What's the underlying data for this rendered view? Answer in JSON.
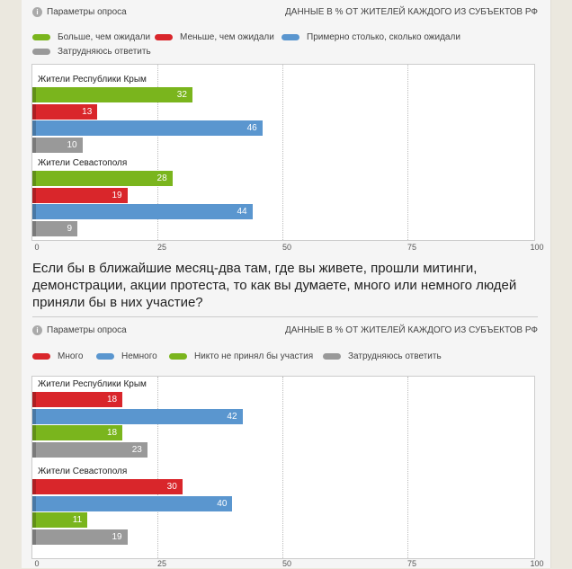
{
  "colors": {
    "green": "#7ab51d",
    "red": "#d9262b",
    "blue": "#5a96cf",
    "gray": "#999999"
  },
  "header": {
    "params_label": "Параметры опроса",
    "scope_label": "ДАННЫЕ В % ОТ ЖИТЕЛЕЙ КАЖДОГО ИЗ СУБЪЕКТОВ РФ",
    "info_icon": "i"
  },
  "question2": "Если бы в ближайшие месяц-два там, где вы живете, прошли митинги, демонстрации, акции протеста, то как вы думаете, много или немного людей приняли бы в них участие?",
  "chart_data": [
    {
      "type": "bar",
      "orientation": "horizontal",
      "xlim": [
        0,
        100
      ],
      "ticks": [
        "0",
        "25",
        "50",
        "75",
        "100"
      ],
      "legend": [
        {
          "name": "Больше, чем ожидали",
          "color": "#7ab51d"
        },
        {
          "name": "Меньше, чем ожидали",
          "color": "#d9262b"
        },
        {
          "name": "Примерно столько, сколько ожидали",
          "color": "#5a96cf"
        },
        {
          "name": "Затрудняюсь ответить",
          "color": "#999999"
        }
      ],
      "groups": [
        {
          "name": "Жители Республики Крым",
          "values": [
            32,
            13,
            46,
            10
          ]
        },
        {
          "name": "Жители Севастополя",
          "values": [
            28,
            19,
            44,
            9
          ]
        }
      ]
    },
    {
      "type": "bar",
      "orientation": "horizontal",
      "xlim": [
        0,
        100
      ],
      "ticks": [
        "0",
        "25",
        "50",
        "75",
        "100"
      ],
      "legend": [
        {
          "name": "Много",
          "color": "#d9262b"
        },
        {
          "name": "Немного",
          "color": "#5a96cf"
        },
        {
          "name": "Никто не принял бы участия",
          "color": "#7ab51d"
        },
        {
          "name": "Затрудняюсь ответить",
          "color": "#999999"
        }
      ],
      "groups": [
        {
          "name": "Жители Республики Крым",
          "values": [
            18,
            42,
            18,
            23
          ]
        },
        {
          "name": "Жители Севастополя",
          "values": [
            30,
            40,
            11,
            19
          ]
        }
      ]
    }
  ]
}
